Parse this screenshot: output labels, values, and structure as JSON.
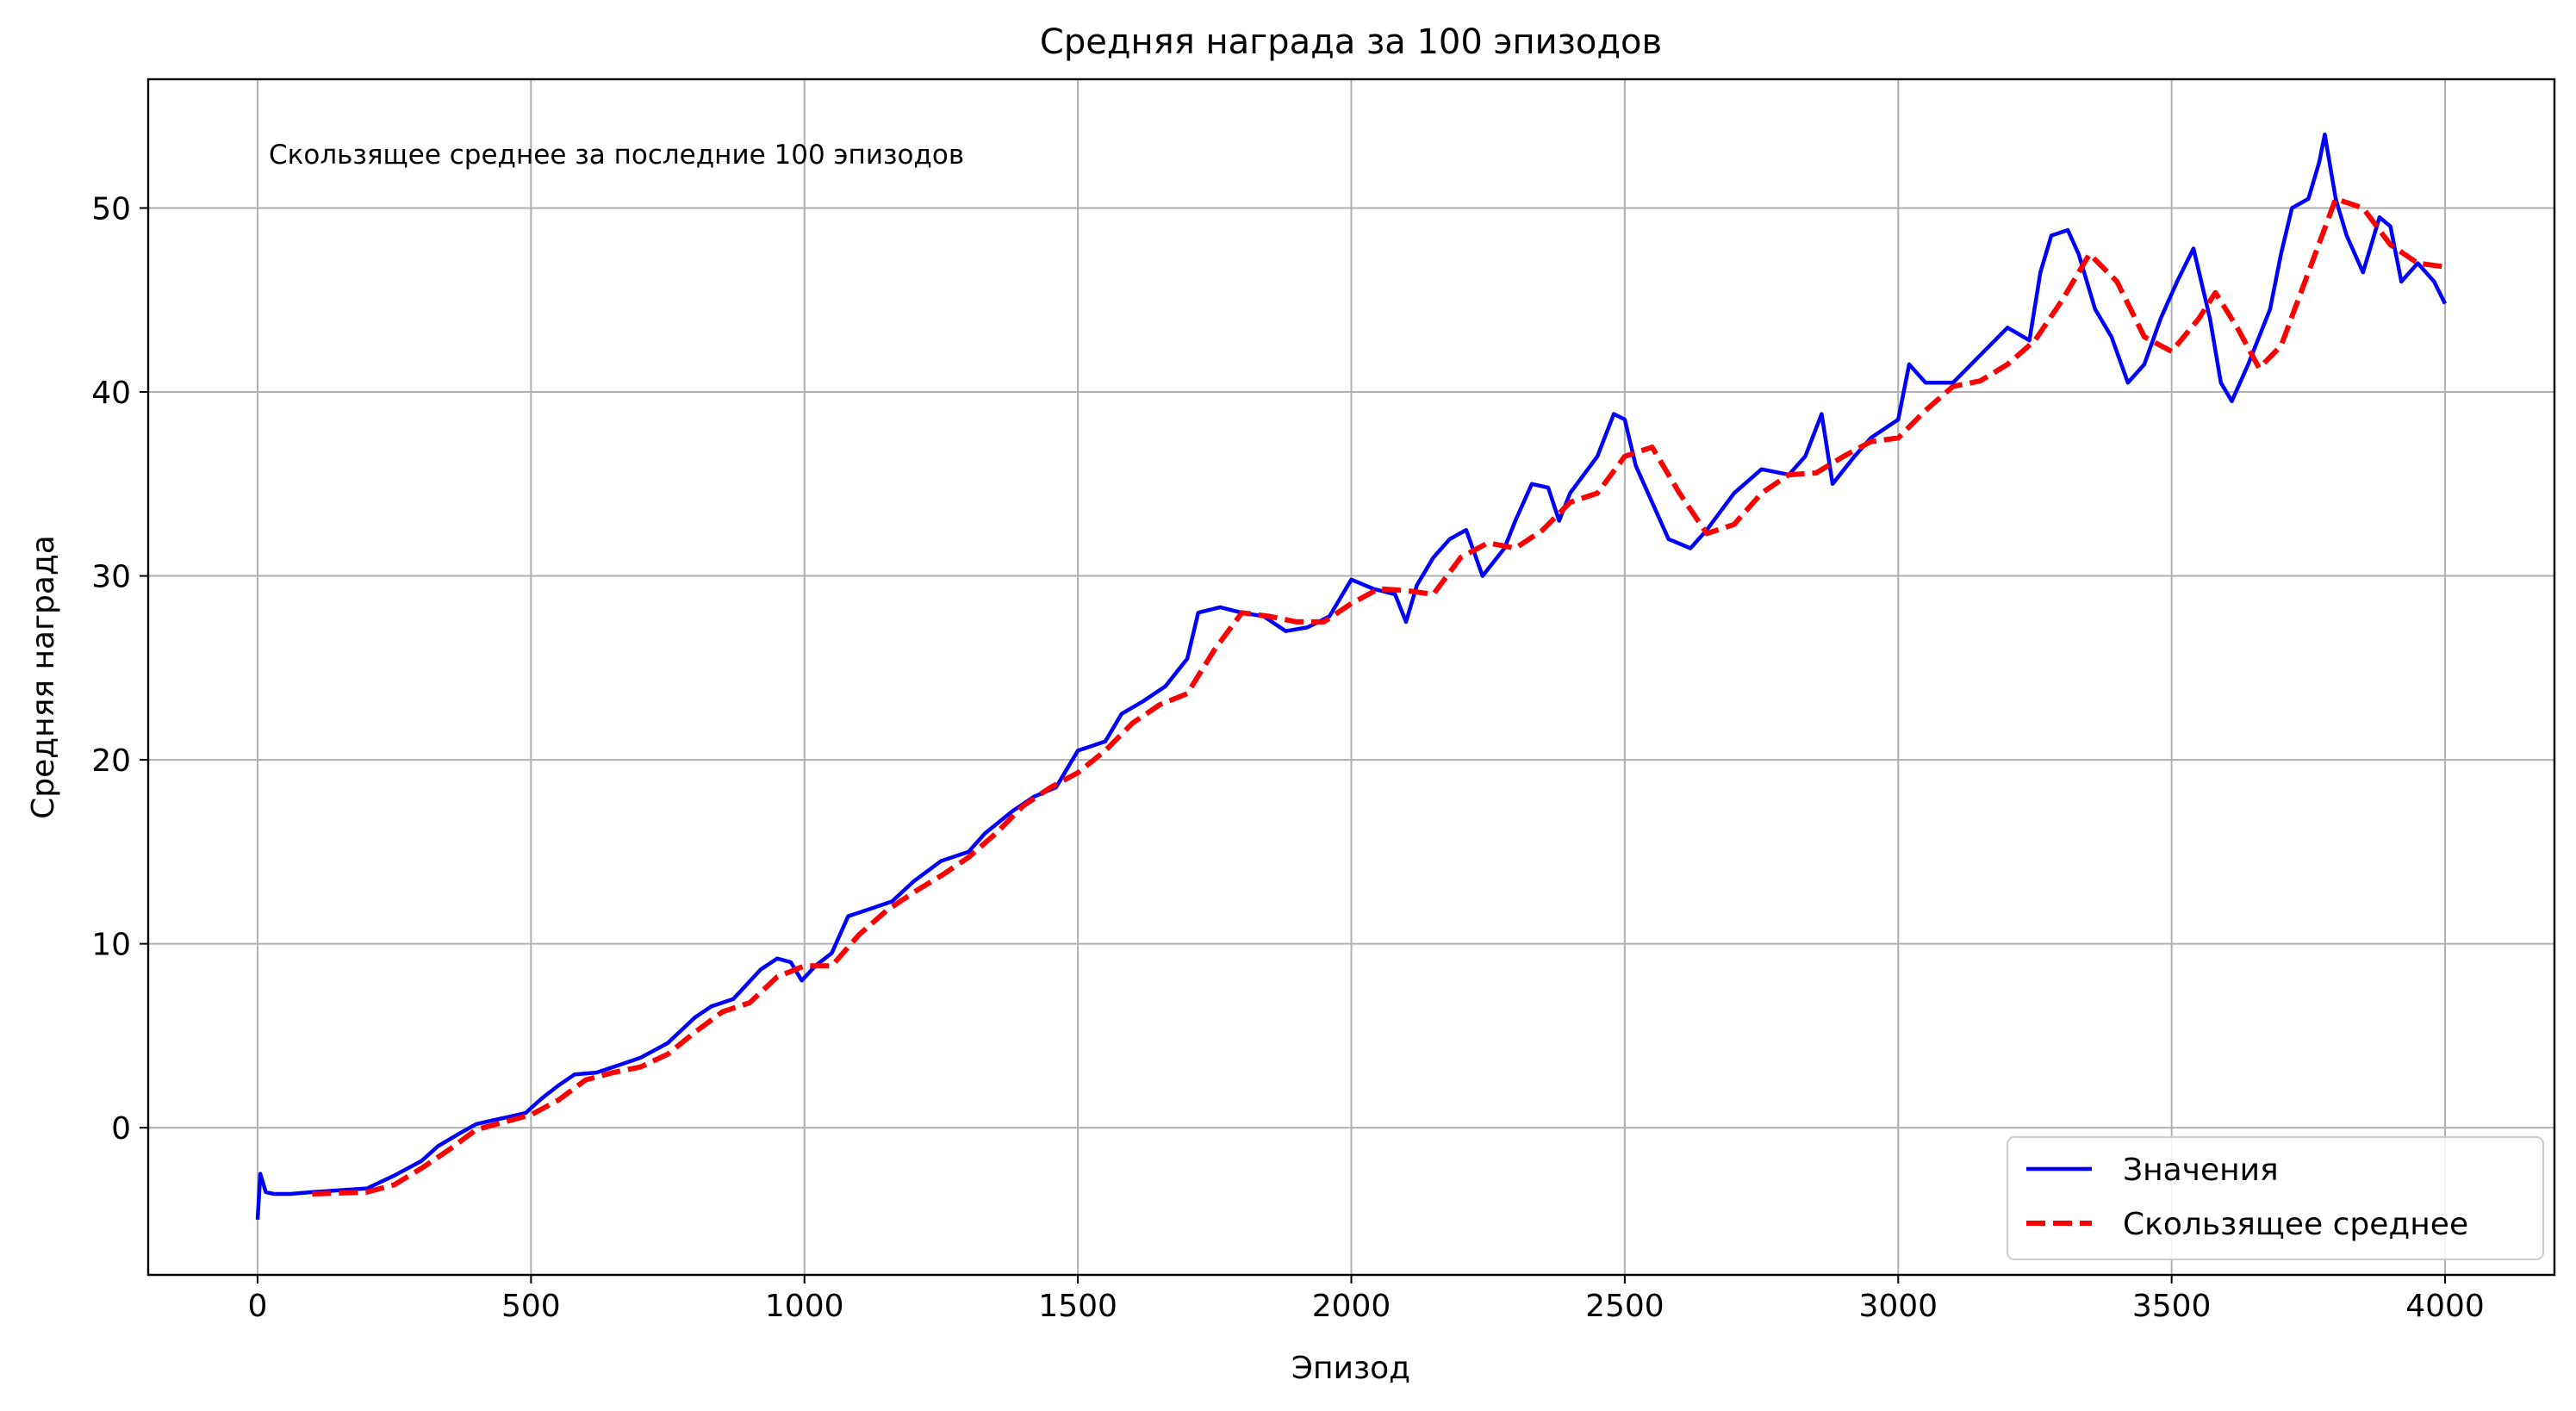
{
  "chart_data": {
    "type": "line",
    "title": "Средняя награда за 100 эпизодов",
    "xlabel": "Эпизод",
    "ylabel": "Средняя награда",
    "annotation": "Скользящее среднее за последние 100 эпизодов",
    "xlim": [
      -200,
      4200
    ],
    "ylim": [
      -8,
      57
    ],
    "xticks": [
      0,
      500,
      1000,
      1500,
      2000,
      2500,
      3000,
      3500,
      4000
    ],
    "yticks": [
      0,
      10,
      20,
      30,
      40,
      50
    ],
    "grid": true,
    "legend_position": "lower-right",
    "series": [
      {
        "name": "Значения",
        "color": "#0000ff",
        "style": "solid",
        "points": [
          [
            0,
            -5.0
          ],
          [
            5,
            -2.5
          ],
          [
            15,
            -3.5
          ],
          [
            30,
            -3.6
          ],
          [
            60,
            -3.6
          ],
          [
            100,
            -3.5
          ],
          [
            150,
            -3.4
          ],
          [
            200,
            -3.3
          ],
          [
            250,
            -2.6
          ],
          [
            300,
            -1.8
          ],
          [
            330,
            -1.0
          ],
          [
            370,
            -0.3
          ],
          [
            400,
            0.2
          ],
          [
            430,
            0.4
          ],
          [
            460,
            0.6
          ],
          [
            490,
            0.8
          ],
          [
            520,
            1.6
          ],
          [
            550,
            2.3
          ],
          [
            580,
            2.9
          ],
          [
            620,
            3.0
          ],
          [
            660,
            3.4
          ],
          [
            700,
            3.8
          ],
          [
            750,
            4.6
          ],
          [
            800,
            6.0
          ],
          [
            830,
            6.6
          ],
          [
            870,
            7.0
          ],
          [
            920,
            8.6
          ],
          [
            950,
            9.2
          ],
          [
            975,
            9.0
          ],
          [
            995,
            8.0
          ],
          [
            1020,
            8.8
          ],
          [
            1050,
            9.5
          ],
          [
            1080,
            11.5
          ],
          [
            1120,
            11.9
          ],
          [
            1160,
            12.3
          ],
          [
            1200,
            13.4
          ],
          [
            1250,
            14.5
          ],
          [
            1300,
            15.0
          ],
          [
            1330,
            16.0
          ],
          [
            1380,
            17.2
          ],
          [
            1420,
            18.0
          ],
          [
            1460,
            18.5
          ],
          [
            1500,
            20.5
          ],
          [
            1550,
            21.0
          ],
          [
            1580,
            22.5
          ],
          [
            1620,
            23.2
          ],
          [
            1660,
            24.0
          ],
          [
            1700,
            25.5
          ],
          [
            1720,
            28.0
          ],
          [
            1760,
            28.3
          ],
          [
            1800,
            28.0
          ],
          [
            1840,
            27.8
          ],
          [
            1880,
            27.0
          ],
          [
            1920,
            27.2
          ],
          [
            1960,
            27.8
          ],
          [
            2000,
            29.8
          ],
          [
            2040,
            29.3
          ],
          [
            2080,
            29.0
          ],
          [
            2100,
            27.5
          ],
          [
            2120,
            29.5
          ],
          [
            2150,
            31.0
          ],
          [
            2180,
            32.0
          ],
          [
            2210,
            32.5
          ],
          [
            2240,
            30.0
          ],
          [
            2280,
            31.5
          ],
          [
            2300,
            33.0
          ],
          [
            2330,
            35.0
          ],
          [
            2360,
            34.8
          ],
          [
            2380,
            33.0
          ],
          [
            2400,
            34.5
          ],
          [
            2450,
            36.5
          ],
          [
            2480,
            38.8
          ],
          [
            2500,
            38.5
          ],
          [
            2520,
            36.0
          ],
          [
            2550,
            34.0
          ],
          [
            2580,
            32.0
          ],
          [
            2620,
            31.5
          ],
          [
            2650,
            32.5
          ],
          [
            2700,
            34.5
          ],
          [
            2750,
            35.8
          ],
          [
            2800,
            35.5
          ],
          [
            2830,
            36.5
          ],
          [
            2860,
            38.8
          ],
          [
            2880,
            35.0
          ],
          [
            2920,
            36.5
          ],
          [
            2950,
            37.5
          ],
          [
            3000,
            38.5
          ],
          [
            3020,
            41.5
          ],
          [
            3050,
            40.5
          ],
          [
            3100,
            40.5
          ],
          [
            3150,
            42.0
          ],
          [
            3200,
            43.5
          ],
          [
            3240,
            42.8
          ],
          [
            3260,
            46.5
          ],
          [
            3280,
            48.5
          ],
          [
            3310,
            48.8
          ],
          [
            3330,
            47.5
          ],
          [
            3360,
            44.5
          ],
          [
            3390,
            43.0
          ],
          [
            3420,
            40.5
          ],
          [
            3450,
            41.5
          ],
          [
            3480,
            44.0
          ],
          [
            3510,
            46.0
          ],
          [
            3540,
            47.8
          ],
          [
            3570,
            44.0
          ],
          [
            3590,
            40.5
          ],
          [
            3610,
            39.5
          ],
          [
            3640,
            41.5
          ],
          [
            3680,
            44.5
          ],
          [
            3700,
            47.5
          ],
          [
            3720,
            50.0
          ],
          [
            3750,
            50.5
          ],
          [
            3770,
            52.5
          ],
          [
            3780,
            54.0
          ],
          [
            3800,
            50.5
          ],
          [
            3820,
            48.5
          ],
          [
            3850,
            46.5
          ],
          [
            3880,
            49.5
          ],
          [
            3900,
            49.0
          ],
          [
            3920,
            46.0
          ],
          [
            3950,
            47.0
          ],
          [
            3980,
            46.0
          ],
          [
            4000,
            44.8
          ]
        ]
      },
      {
        "name": "Скользящее среднее",
        "color": "#ff0000",
        "style": "dashed",
        "points": [
          [
            100,
            -3.6
          ],
          [
            200,
            -3.5
          ],
          [
            250,
            -3.1
          ],
          [
            300,
            -2.2
          ],
          [
            350,
            -1.2
          ],
          [
            400,
            -0.1
          ],
          [
            450,
            0.3
          ],
          [
            500,
            0.7
          ],
          [
            550,
            1.5
          ],
          [
            600,
            2.6
          ],
          [
            650,
            3.0
          ],
          [
            700,
            3.3
          ],
          [
            750,
            4.0
          ],
          [
            800,
            5.2
          ],
          [
            850,
            6.3
          ],
          [
            900,
            6.8
          ],
          [
            950,
            8.2
          ],
          [
            1000,
            8.8
          ],
          [
            1050,
            8.8
          ],
          [
            1100,
            10.5
          ],
          [
            1150,
            11.8
          ],
          [
            1200,
            12.8
          ],
          [
            1250,
            13.7
          ],
          [
            1300,
            14.7
          ],
          [
            1350,
            16.0
          ],
          [
            1400,
            17.5
          ],
          [
            1450,
            18.5
          ],
          [
            1500,
            19.3
          ],
          [
            1550,
            20.5
          ],
          [
            1600,
            22.0
          ],
          [
            1650,
            23.0
          ],
          [
            1700,
            23.6
          ],
          [
            1750,
            26.0
          ],
          [
            1800,
            28.0
          ],
          [
            1850,
            27.8
          ],
          [
            1900,
            27.5
          ],
          [
            1950,
            27.5
          ],
          [
            2000,
            28.5
          ],
          [
            2050,
            29.3
          ],
          [
            2100,
            29.2
          ],
          [
            2150,
            29.0
          ],
          [
            2200,
            31.0
          ],
          [
            2250,
            31.8
          ],
          [
            2300,
            31.5
          ],
          [
            2350,
            32.5
          ],
          [
            2400,
            34.0
          ],
          [
            2450,
            34.5
          ],
          [
            2500,
            36.5
          ],
          [
            2550,
            37.0
          ],
          [
            2600,
            34.5
          ],
          [
            2650,
            32.3
          ],
          [
            2700,
            32.8
          ],
          [
            2750,
            34.5
          ],
          [
            2800,
            35.5
          ],
          [
            2850,
            35.6
          ],
          [
            2900,
            36.5
          ],
          [
            2950,
            37.3
          ],
          [
            3000,
            37.5
          ],
          [
            3050,
            39.0
          ],
          [
            3100,
            40.3
          ],
          [
            3150,
            40.6
          ],
          [
            3200,
            41.5
          ],
          [
            3250,
            42.8
          ],
          [
            3300,
            45.0
          ],
          [
            3350,
            47.5
          ],
          [
            3400,
            46.0
          ],
          [
            3450,
            43.0
          ],
          [
            3500,
            42.2
          ],
          [
            3550,
            44.0
          ],
          [
            3580,
            45.4
          ],
          [
            3620,
            43.5
          ],
          [
            3660,
            41.3
          ],
          [
            3700,
            42.5
          ],
          [
            3750,
            46.5
          ],
          [
            3800,
            50.5
          ],
          [
            3850,
            50.0
          ],
          [
            3900,
            48.0
          ],
          [
            3950,
            47.0
          ],
          [
            4000,
            46.8
          ]
        ]
      }
    ]
  }
}
